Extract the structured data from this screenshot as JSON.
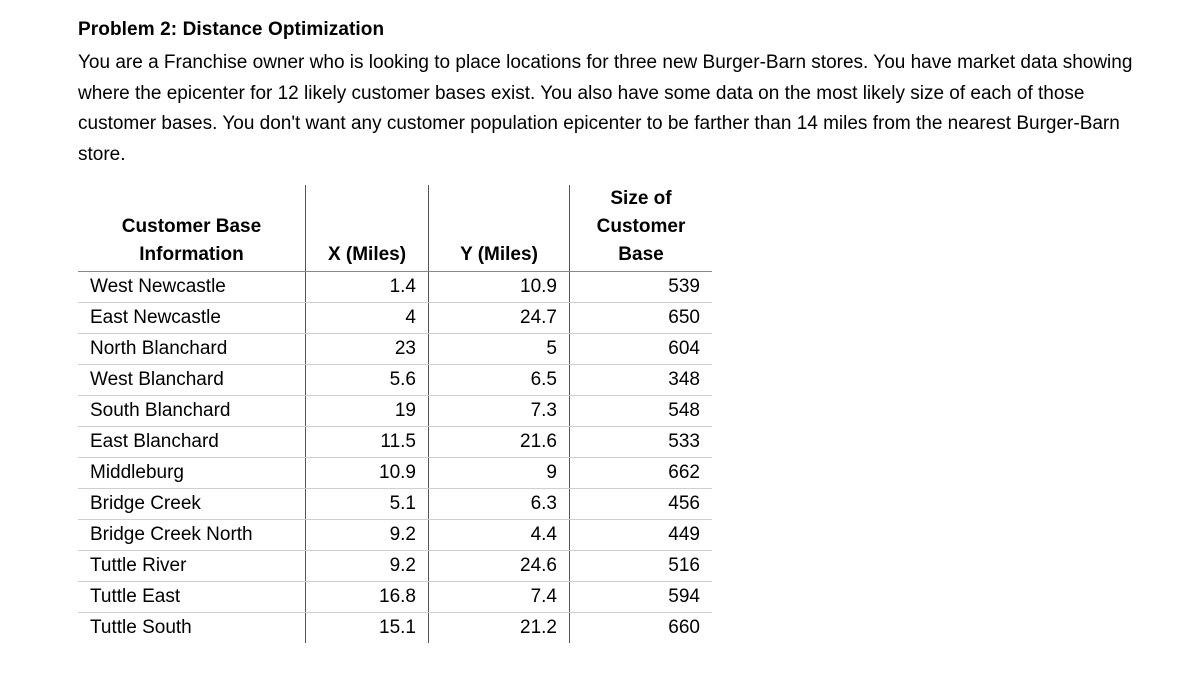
{
  "problem": {
    "title": "Problem 2:  Distance Optimization",
    "paragraph": "You are a Franchise owner who is looking to place locations for three new Burger-Barn stores.  You have market data showing where the epicenter for 12 likely customer bases exist.  You also have some data on the most likely size of each of those customer bases.  You don't want any customer population epicenter to be farther than 14 miles from the nearest Burger-Barn store."
  },
  "table": {
    "headers": {
      "name_line1": "Customer Base",
      "name_line2": "Information",
      "x": "X (Miles)",
      "y": "Y (Miles)",
      "size_line1": "Size of",
      "size_line2": "Customer",
      "size_line3": "Base"
    },
    "rows": [
      {
        "name": "West Newcastle",
        "x": "1.4",
        "y": "10.9",
        "size": "539"
      },
      {
        "name": "East Newcastle",
        "x": "4",
        "y": "24.7",
        "size": "650"
      },
      {
        "name": "North Blanchard",
        "x": "23",
        "y": "5",
        "size": "604"
      },
      {
        "name": "West Blanchard",
        "x": "5.6",
        "y": "6.5",
        "size": "348"
      },
      {
        "name": "South Blanchard",
        "x": "19",
        "y": "7.3",
        "size": "548"
      },
      {
        "name": "East Blanchard",
        "x": "11.5",
        "y": "21.6",
        "size": "533"
      },
      {
        "name": "Middleburg",
        "x": "10.9",
        "y": "9",
        "size": "662"
      },
      {
        "name": "Bridge Creek",
        "x": "5.1",
        "y": "6.3",
        "size": "456"
      },
      {
        "name": "Bridge Creek North",
        "x": "9.2",
        "y": "4.4",
        "size": "449"
      },
      {
        "name": "Tuttle River",
        "x": "9.2",
        "y": "24.6",
        "size": "516"
      },
      {
        "name": "Tuttle East",
        "x": "16.8",
        "y": "7.4",
        "size": "594"
      },
      {
        "name": "Tuttle South",
        "x": "15.1",
        "y": "21.2",
        "size": "660"
      }
    ]
  }
}
